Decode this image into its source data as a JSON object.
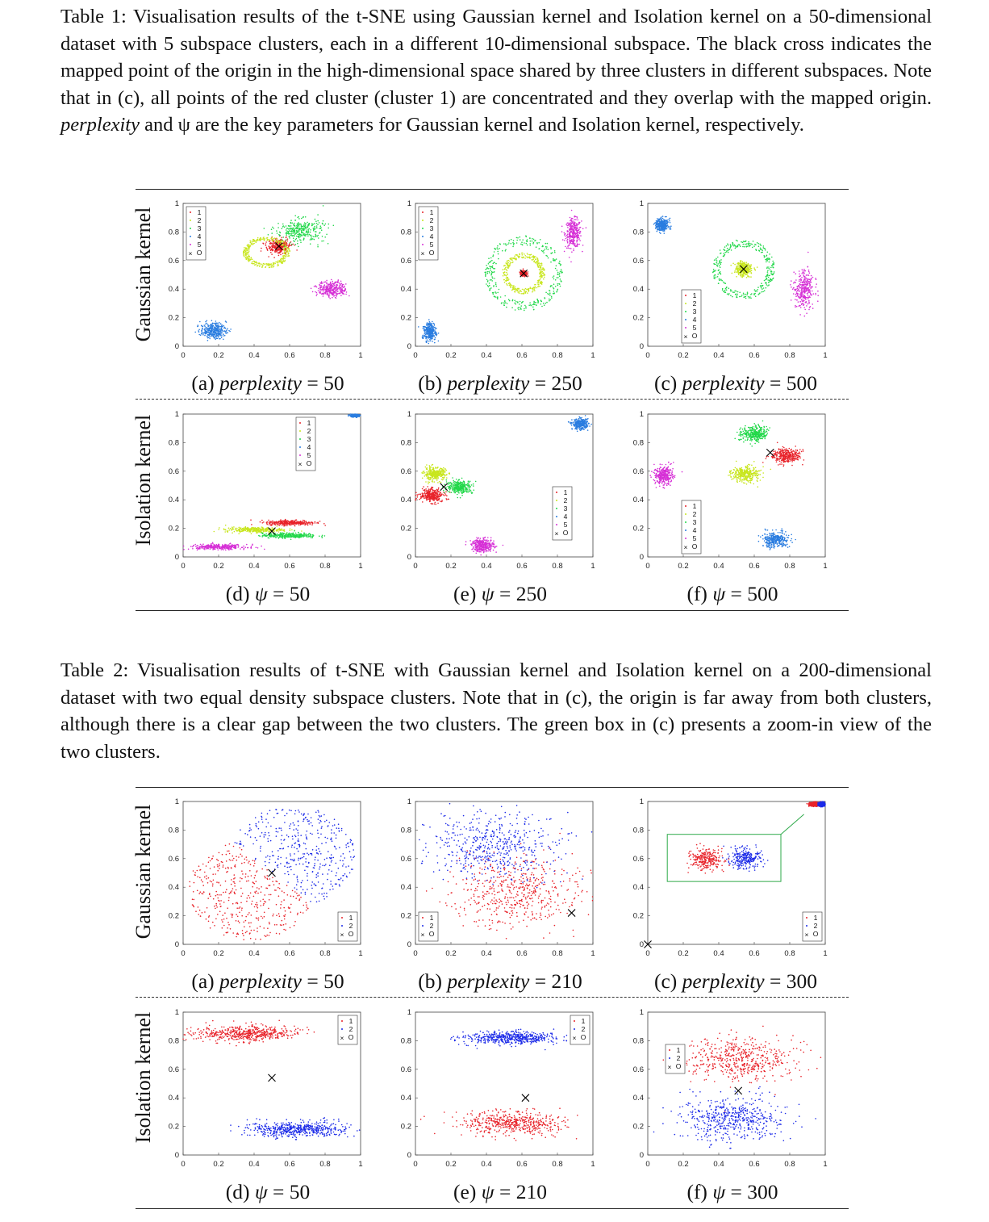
{
  "table1": {
    "caption": "Table 1:  Visualisation results of the t-SNE using Gaussian kernel and Isolation kernel on a 50-dimensional dataset with 5 subspace clusters, each in a different 10-dimensional subspace. The black cross indicates the mapped point of the origin in the high-dimensional space shared by three clusters in different subspaces. Note that in (c), all points of the red cluster (cluster 1) are concentrated and they overlap with the mapped origin.",
    "caption_italic": "perplexity",
    "caption_tail": "and ψ are the key parameters for Gaussian kernel and Isolation kernel, respectively.",
    "row_labels": [
      "Gaussian kernel",
      "Isolation kernel"
    ],
    "subcaptions": [
      {
        "prefix": "(a)",
        "param": "perplexity",
        "value": "= 50"
      },
      {
        "prefix": "(b)",
        "param": "perplexity",
        "value": "= 250"
      },
      {
        "prefix": "(c)",
        "param": "perplexity",
        "value": "= 500"
      },
      {
        "prefix": "(d)",
        "param": "ψ",
        "value": "= 50"
      },
      {
        "prefix": "(e)",
        "param": "ψ",
        "value": "= 250"
      },
      {
        "prefix": "(f)",
        "param": "ψ",
        "value": "= 500"
      }
    ]
  },
  "table2": {
    "caption": "Table 2: Visualisation results of t-SNE with Gaussian kernel and Isolation kernel on a 200-dimensional dataset with two equal density subspace clusters. Note that in (c), the origin is far away from both clusters, although there is a clear gap between the two clusters. The green box in (c) presents a zoom-in view of the two clusters.",
    "row_labels": [
      "Gaussian kernel",
      "Isolation kernel"
    ],
    "subcaptions": [
      {
        "prefix": "(a)",
        "param": "perplexity",
        "value": "= 50"
      },
      {
        "prefix": "(b)",
        "param": "perplexity",
        "value": "= 210"
      },
      {
        "prefix": "(c)",
        "param": "perplexity",
        "value": "= 300"
      },
      {
        "prefix": "(d)",
        "param": "ψ",
        "value": "= 50"
      },
      {
        "prefix": "(e)",
        "param": "ψ",
        "value": "= 210"
      },
      {
        "prefix": "(f)",
        "param": "ψ",
        "value": "= 300"
      }
    ]
  },
  "colors": {
    "c1": "#e8232a",
    "c2": "#c8e61e",
    "c3": "#22d84a",
    "c4": "#2a7de0",
    "c5": "#d630d6",
    "blue": "#1c2be8",
    "origin": "#000000",
    "zoombox": "#2eaa4a"
  },
  "axis_ticks": {
    "x": [
      "0",
      "0.2",
      "0.4",
      "0.6",
      "0.8",
      "1"
    ],
    "y": [
      "0",
      "0.2",
      "0.4",
      "0.6",
      "0.8",
      "1"
    ]
  },
  "legend5": [
    "1",
    "2",
    "3",
    "4",
    "5",
    "O"
  ],
  "legend2": [
    "1",
    "2",
    "O"
  ],
  "chart_data": [
    {
      "type": "scatter",
      "panel": "Table 1 (a)",
      "xlim": [
        0,
        1
      ],
      "ylim": [
        0,
        1
      ],
      "legend": "top-left",
      "clusters": [
        {
          "label": "1",
          "cx": 0.54,
          "cy": 0.7,
          "rx": 0.07,
          "ry": 0.06
        },
        {
          "label": "2",
          "cx": 0.47,
          "cy": 0.66,
          "rx": 0.12,
          "ry": 0.1,
          "ring": true
        },
        {
          "label": "3",
          "cx": 0.66,
          "cy": 0.81,
          "rx": 0.15,
          "ry": 0.09
        },
        {
          "label": "4",
          "cx": 0.17,
          "cy": 0.11,
          "rx": 0.08,
          "ry": 0.06
        },
        {
          "label": "5",
          "cx": 0.84,
          "cy": 0.4,
          "rx": 0.09,
          "ry": 0.06
        }
      ],
      "origin": [
        0.54,
        0.7
      ]
    },
    {
      "type": "scatter",
      "panel": "Table 1 (b)",
      "xlim": [
        0,
        1
      ],
      "ylim": [
        0,
        1
      ],
      "legend": "top-left",
      "clusters": [
        {
          "label": "1",
          "cx": 0.61,
          "cy": 0.51,
          "rx": 0.02,
          "ry": 0.02
        },
        {
          "label": "2",
          "cx": 0.61,
          "cy": 0.51,
          "rx": 0.11,
          "ry": 0.13,
          "ring": true
        },
        {
          "label": "3",
          "cx": 0.61,
          "cy": 0.51,
          "rx": 0.2,
          "ry": 0.24,
          "ring": true
        },
        {
          "label": "4",
          "cx": 0.08,
          "cy": 0.1,
          "rx": 0.04,
          "ry": 0.07
        },
        {
          "label": "5",
          "cx": 0.89,
          "cy": 0.79,
          "rx": 0.05,
          "ry": 0.11
        }
      ],
      "origin": [
        0.61,
        0.51
      ]
    },
    {
      "type": "scatter",
      "panel": "Table 1 (c)",
      "xlim": [
        0,
        1
      ],
      "ylim": [
        0,
        1
      ],
      "legend": "bottom-left",
      "clusters": [
        {
          "label": "1",
          "cx": 0.54,
          "cy": 0.54,
          "rx": 0.005,
          "ry": 0.005
        },
        {
          "label": "2",
          "cx": 0.54,
          "cy": 0.54,
          "rx": 0.05,
          "ry": 0.05
        },
        {
          "label": "3",
          "cx": 0.54,
          "cy": 0.54,
          "rx": 0.16,
          "ry": 0.19,
          "ring": true
        },
        {
          "label": "4",
          "cx": 0.08,
          "cy": 0.85,
          "rx": 0.04,
          "ry": 0.05
        },
        {
          "label": "5",
          "cx": 0.88,
          "cy": 0.4,
          "rx": 0.06,
          "ry": 0.15
        }
      ],
      "origin": [
        0.54,
        0.54
      ]
    },
    {
      "type": "scatter",
      "panel": "Table 1 (d)",
      "xlim": [
        0,
        1
      ],
      "ylim": [
        0,
        1
      ],
      "legend": "top-right",
      "clusters": [
        {
          "label": "1",
          "cx": 0.61,
          "cy": 0.24,
          "rx": 0.15,
          "ry": 0.02
        },
        {
          "label": "2",
          "cx": 0.4,
          "cy": 0.19,
          "rx": 0.18,
          "ry": 0.02
        },
        {
          "label": "3",
          "cx": 0.6,
          "cy": 0.15,
          "rx": 0.17,
          "ry": 0.02
        },
        {
          "label": "4",
          "cx": 0.97,
          "cy": 0.99,
          "rx": 0.03,
          "ry": 0.01
        },
        {
          "label": "5",
          "cx": 0.2,
          "cy": 0.07,
          "rx": 0.18,
          "ry": 0.02
        }
      ],
      "origin": [
        0.5,
        0.18
      ]
    },
    {
      "type": "scatter",
      "panel": "Table 1 (e)",
      "xlim": [
        0,
        1
      ],
      "ylim": [
        0,
        1
      ],
      "legend": "bottom-right",
      "clusters": [
        {
          "label": "1",
          "cx": 0.09,
          "cy": 0.43,
          "rx": 0.08,
          "ry": 0.05
        },
        {
          "label": "2",
          "cx": 0.11,
          "cy": 0.58,
          "rx": 0.07,
          "ry": 0.05
        },
        {
          "label": "3",
          "cx": 0.25,
          "cy": 0.49,
          "rx": 0.08,
          "ry": 0.05
        },
        {
          "label": "4",
          "cx": 0.93,
          "cy": 0.93,
          "rx": 0.05,
          "ry": 0.04
        },
        {
          "label": "5",
          "cx": 0.38,
          "cy": 0.08,
          "rx": 0.07,
          "ry": 0.05
        }
      ],
      "origin": [
        0.16,
        0.49
      ]
    },
    {
      "type": "scatter",
      "panel": "Table 1 (f)",
      "xlim": [
        0,
        1
      ],
      "ylim": [
        0,
        1
      ],
      "legend": "bottom-left",
      "clusters": [
        {
          "label": "1",
          "cx": 0.78,
          "cy": 0.71,
          "rx": 0.09,
          "ry": 0.06
        },
        {
          "label": "2",
          "cx": 0.55,
          "cy": 0.58,
          "rx": 0.09,
          "ry": 0.06
        },
        {
          "label": "3",
          "cx": 0.6,
          "cy": 0.86,
          "rx": 0.08,
          "ry": 0.06
        },
        {
          "label": "4",
          "cx": 0.72,
          "cy": 0.12,
          "rx": 0.08,
          "ry": 0.06
        },
        {
          "label": "5",
          "cx": 0.09,
          "cy": 0.57,
          "rx": 0.06,
          "ry": 0.07
        }
      ],
      "origin": [
        0.69,
        0.73
      ]
    },
    {
      "type": "scatter",
      "panel": "Table 2 (a)",
      "xlim": [
        0,
        1
      ],
      "ylim": [
        0,
        1
      ],
      "legend": "bottom-right",
      "clusters": [
        {
          "label": "1",
          "cx": 0.38,
          "cy": 0.38,
          "rx": 0.35,
          "ry": 0.35,
          "half": "lower-left"
        },
        {
          "label": "2",
          "cx": 0.62,
          "cy": 0.62,
          "rx": 0.35,
          "ry": 0.35,
          "half": "upper-right"
        }
      ],
      "origin": [
        0.5,
        0.5
      ]
    },
    {
      "type": "scatter",
      "panel": "Table 2 (b)",
      "xlim": [
        0,
        1
      ],
      "ylim": [
        0,
        1
      ],
      "legend": "bottom-left",
      "clusters": [
        {
          "label": "1",
          "cx": 0.55,
          "cy": 0.36,
          "rx": 0.42,
          "ry": 0.28
        },
        {
          "label": "2",
          "cx": 0.45,
          "cy": 0.7,
          "rx": 0.4,
          "ry": 0.26
        }
      ],
      "origin": [
        0.88,
        0.22
      ]
    },
    {
      "type": "scatter",
      "panel": "Table 2 (c)",
      "xlim": [
        0,
        1
      ],
      "ylim": [
        0,
        1
      ],
      "legend": "bottom-right",
      "clusters": [
        {
          "label": "1",
          "cx": 0.94,
          "cy": 0.98,
          "rx": 0.03,
          "ry": 0.015
        },
        {
          "label": "2",
          "cx": 0.98,
          "cy": 0.98,
          "rx": 0.02,
          "ry": 0.015
        }
      ],
      "origin": [
        0.0,
        0.0
      ],
      "zoom_box": true
    },
    {
      "type": "scatter",
      "panel": "Table 2 (d)",
      "xlim": [
        0,
        1
      ],
      "ylim": [
        0,
        1
      ],
      "legend": "top-right",
      "clusters": [
        {
          "label": "1",
          "cx": 0.35,
          "cy": 0.85,
          "rx": 0.32,
          "ry": 0.06
        },
        {
          "label": "2",
          "cx": 0.65,
          "cy": 0.18,
          "rx": 0.32,
          "ry": 0.06
        }
      ],
      "origin": [
        0.5,
        0.54
      ]
    },
    {
      "type": "scatter",
      "panel": "Table 2 (e)",
      "xlim": [
        0,
        1
      ],
      "ylim": [
        0,
        1
      ],
      "legend": "top-right",
      "clusters": [
        {
          "label": "1",
          "cx": 0.55,
          "cy": 0.22,
          "rx": 0.3,
          "ry": 0.09
        },
        {
          "label": "2",
          "cx": 0.55,
          "cy": 0.82,
          "rx": 0.3,
          "ry": 0.05
        }
      ],
      "origin": [
        0.62,
        0.4
      ]
    },
    {
      "type": "scatter",
      "panel": "Table 2 (f)",
      "xlim": [
        0,
        1
      ],
      "ylim": [
        0,
        1
      ],
      "legend": "top-left",
      "clusters": [
        {
          "label": "1",
          "cx": 0.52,
          "cy": 0.67,
          "rx": 0.33,
          "ry": 0.17
        },
        {
          "label": "2",
          "cx": 0.48,
          "cy": 0.25,
          "rx": 0.33,
          "ry": 0.17
        }
      ],
      "origin": [
        0.51,
        0.45
      ]
    }
  ]
}
